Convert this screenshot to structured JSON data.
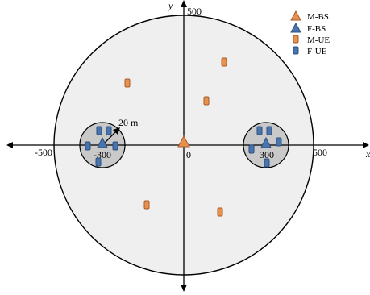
{
  "axes": {
    "x_label": "x",
    "y_label": "y",
    "ticks": [
      {
        "id": "neg500",
        "text": "-500"
      },
      {
        "id": "neg300",
        "text": "-300"
      },
      {
        "id": "zero",
        "text": "0"
      },
      {
        "id": "pos300",
        "text": "300"
      },
      {
        "id": "pos500",
        "text": "500"
      },
      {
        "id": "ytop500",
        "text": "500"
      }
    ]
  },
  "annotation": {
    "femto_radius": "20 m"
  },
  "legend": {
    "m_bs": "M-BS",
    "f_bs": "F-BS",
    "m_ue": "M-UE",
    "f_ue": "F-UE"
  },
  "colors": {
    "m_bs_fill": "#e8914f",
    "m_bs_stroke": "#a75a2a",
    "f_bs_fill": "#4a74ad",
    "f_bs_stroke": "#2c4f7e",
    "m_ue_fill": "#e8914f",
    "m_ue_stroke": "#a75a2a",
    "f_ue_fill": "#4a74ad",
    "f_ue_stroke": "#2c4f7e",
    "femto_cell_fill": "#c9c9c9",
    "macro_cell_fill": "#efefef"
  }
}
